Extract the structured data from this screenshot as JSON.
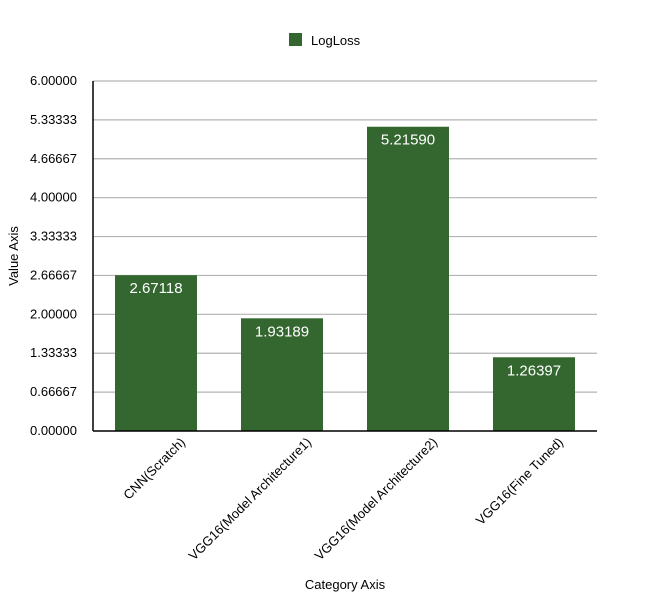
{
  "chart_data": {
    "type": "bar",
    "categories": [
      "CNN(Scratch)",
      "VGG16(Model Architecture1)",
      "VGG16(Model Architecture2)",
      "VGG16(Fine Tuned)"
    ],
    "series": [
      {
        "name": "LogLoss",
        "values": [
          2.67118,
          1.93189,
          5.2159,
          1.26397
        ]
      }
    ],
    "data_labels": [
      "2.67118",
      "1.93189",
      "5.21590",
      "1.26397"
    ],
    "yticks": [
      "0.00000",
      "0.66667",
      "1.33333",
      "2.00000",
      "2.66667",
      "3.33333",
      "4.00000",
      "4.66667",
      "5.33333",
      "6.00000"
    ],
    "ylim": [
      0,
      6
    ],
    "xlabel": "Category Axis",
    "ylabel": "Value Axis",
    "legend_position": "top-center",
    "grid": true,
    "colors": {
      "bar": "#34672f",
      "grid": "#b3b3b3",
      "axis": "#000000"
    }
  }
}
